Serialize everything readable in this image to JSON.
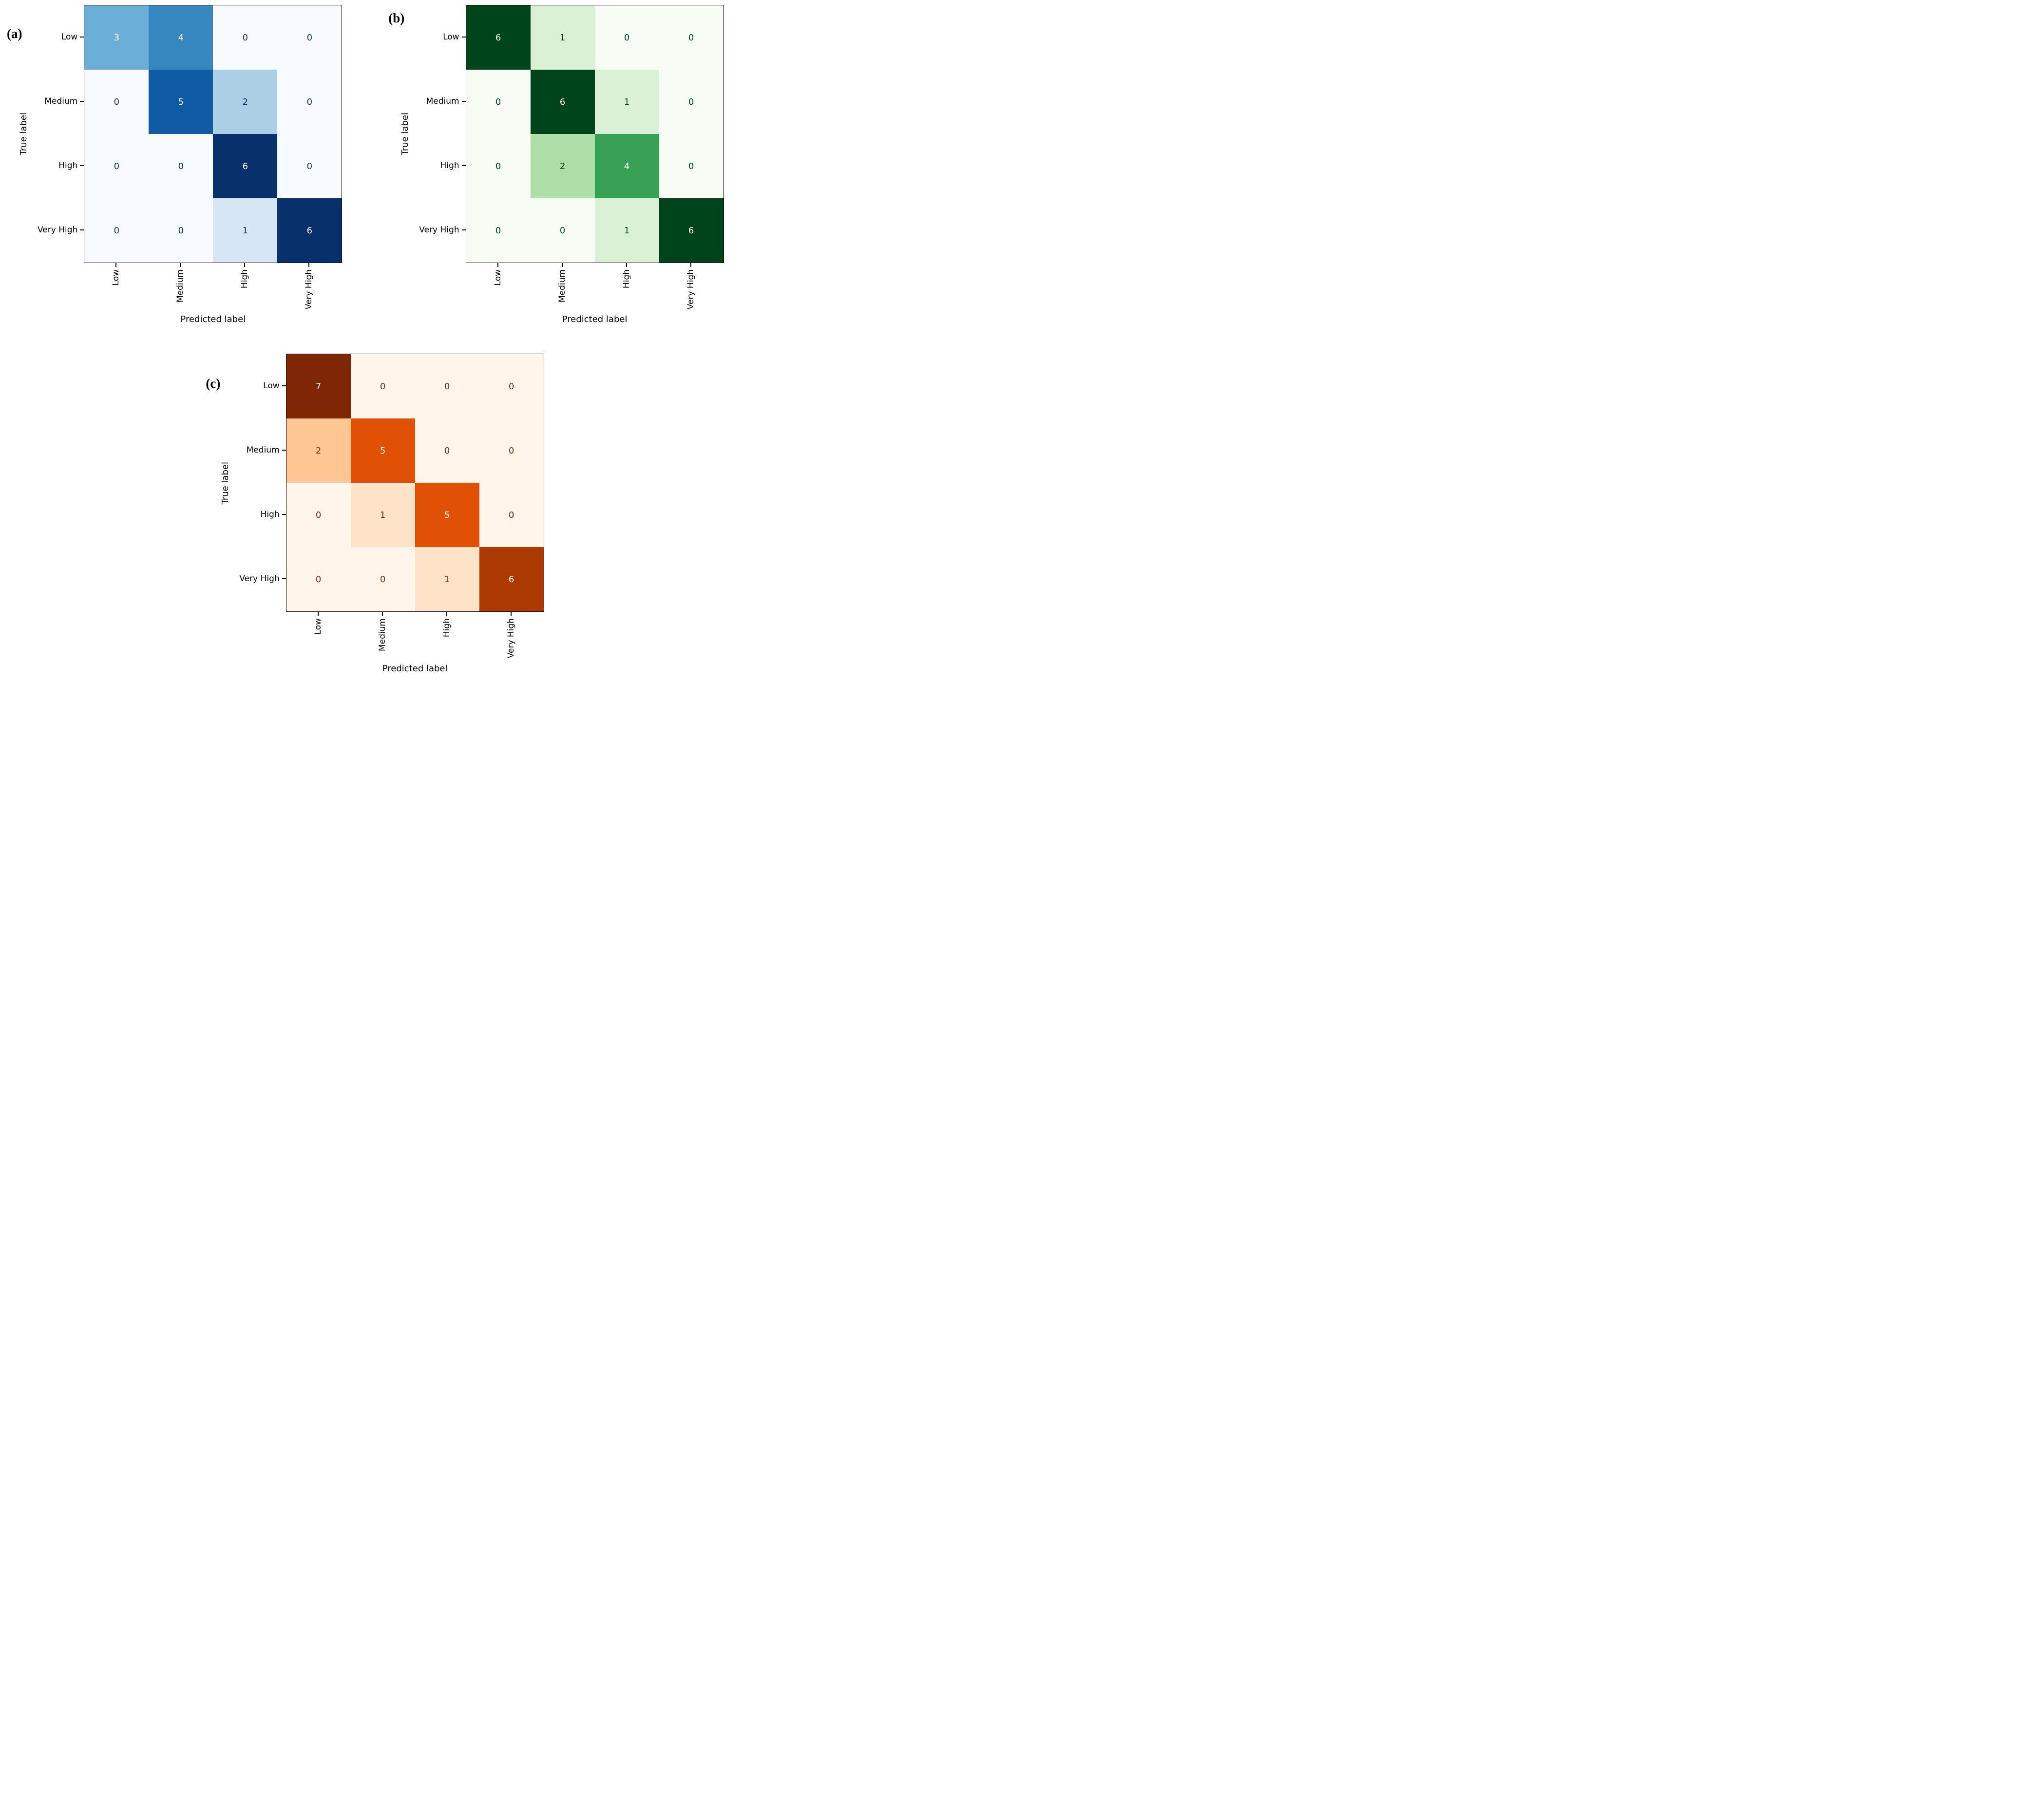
{
  "colormaps": {
    "Blues": [
      "#f7fbff",
      "#deebf7",
      "#c6dbef",
      "#9ecae1",
      "#6baed6",
      "#4292c6",
      "#2171b5",
      "#08519c",
      "#08306b"
    ],
    "Greens": [
      "#f7fcf5",
      "#e5f5e0",
      "#c7e9c0",
      "#a1d99b",
      "#74c476",
      "#41ab5d",
      "#238b45",
      "#006d2c",
      "#00441b"
    ],
    "Oranges": [
      "#fff5eb",
      "#fee6ce",
      "#fdd0a2",
      "#fdae6b",
      "#fd8d3c",
      "#f16913",
      "#d94801",
      "#a63603",
      "#7f2704"
    ]
  },
  "chart_data": [
    {
      "type": "heatmap",
      "id": "a",
      "panel_label": "(a)",
      "title": "",
      "xlabel": "Predicted label",
      "ylabel": "True label",
      "x_tick_labels": [
        "Low",
        "Medium",
        "High",
        "Very High"
      ],
      "y_tick_labels": [
        "Low",
        "Medium",
        "High",
        "Very High"
      ],
      "values": [
        [
          3,
          4,
          0,
          0
        ],
        [
          0,
          5,
          2,
          0
        ],
        [
          0,
          0,
          6,
          0
        ],
        [
          0,
          0,
          1,
          6
        ]
      ],
      "value_range": [
        0,
        6
      ],
      "colormap": "Blues",
      "text_color_light": "#ffffff",
      "text_color_dark": "#08306b"
    },
    {
      "type": "heatmap",
      "id": "b",
      "panel_label": "(b)",
      "title": "",
      "xlabel": "Predicted label",
      "ylabel": "True label",
      "x_tick_labels": [
        "Low",
        "Medium",
        "High",
        "Very High"
      ],
      "y_tick_labels": [
        "Low",
        "Medium",
        "High",
        "Very High"
      ],
      "values": [
        [
          6,
          1,
          0,
          0
        ],
        [
          0,
          6,
          1,
          0
        ],
        [
          0,
          2,
          4,
          0
        ],
        [
          0,
          0,
          1,
          6
        ]
      ],
      "value_range": [
        0,
        6
      ],
      "colormap": "Greens",
      "text_color_light": "#ffffff",
      "text_color_dark": "#00441b"
    },
    {
      "type": "heatmap",
      "id": "c",
      "panel_label": "(c)",
      "title": "",
      "xlabel": "Predicted label",
      "ylabel": "True label",
      "x_tick_labels": [
        "Low",
        "Medium",
        "High",
        "Very High"
      ],
      "y_tick_labels": [
        "Low",
        "Medium",
        "High",
        "Very High"
      ],
      "values": [
        [
          7,
          0,
          0,
          0
        ],
        [
          2,
          5,
          0,
          0
        ],
        [
          0,
          1,
          5,
          0
        ],
        [
          0,
          0,
          1,
          6
        ]
      ],
      "value_range": [
        0,
        7
      ],
      "colormap": "Oranges",
      "text_color_light": "#ffffff",
      "text_color_dark": "#7f2704"
    }
  ]
}
